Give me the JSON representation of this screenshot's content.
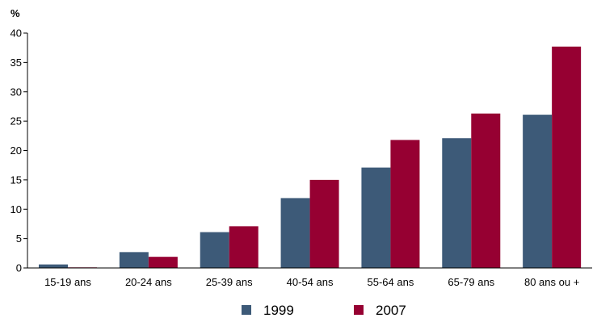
{
  "chart_data": {
    "type": "bar",
    "ylabel": "%",
    "ylim": [
      0,
      40
    ],
    "yticks": [
      0,
      5,
      10,
      15,
      20,
      25,
      30,
      35,
      40
    ],
    "grid": false,
    "legend_position": "bottom",
    "categories": [
      "15-19 ans",
      "20-24 ans",
      "25-39 ans",
      "40-54 ans",
      "55-64 ans",
      "65-79 ans",
      "80 ans ou +"
    ],
    "series": [
      {
        "name": "1999",
        "color": "#3d5a78",
        "values": [
          0.6,
          2.7,
          6.1,
          11.9,
          17.1,
          22.1,
          26.1
        ]
      },
      {
        "name": "2007",
        "color": "#960032",
        "values": [
          0.1,
          1.9,
          7.1,
          15.0,
          21.8,
          26.3,
          37.7
        ]
      }
    ]
  }
}
